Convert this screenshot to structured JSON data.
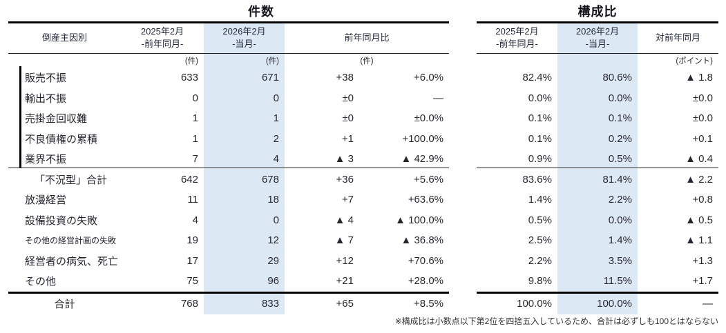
{
  "left_table": {
    "title": "件数",
    "headers": {
      "cause": "倒産主因別",
      "col2025": "2025年2月\n-前年同月-",
      "col2026": "2026年2月\n-当月-",
      "yoy": "前年同月比"
    },
    "units": {
      "col2025": "(件)",
      "col2026": "(件)",
      "yoy": "(件)"
    }
  },
  "right_table": {
    "title": "構成比",
    "headers": {
      "col2025": "2025年2月\n-前年同月-",
      "col2026": "2026年2月\n-当月-",
      "yoy": "対前年同月"
    },
    "units": {
      "yoy": "(ポイント)"
    }
  },
  "rows": [
    {
      "label": "販売不振",
      "cases_prev": "633",
      "cases_curr": "671",
      "cases_diff": "+38",
      "cases_pct": "+6.0%",
      "share_prev": "82.4%",
      "share_curr": "80.6%",
      "share_diff": "▲ 1.8"
    },
    {
      "label": "輸出不振",
      "cases_prev": "0",
      "cases_curr": "0",
      "cases_diff": "±0",
      "cases_pct": "—",
      "share_prev": "0.0%",
      "share_curr": "0.0%",
      "share_diff": "±0.0"
    },
    {
      "label": "売掛金回収難",
      "cases_prev": "1",
      "cases_curr": "1",
      "cases_diff": "±0",
      "cases_pct": "±0.0%",
      "share_prev": "0.1%",
      "share_curr": "0.1%",
      "share_diff": "±0.0"
    },
    {
      "label": "不良債権の累積",
      "cases_prev": "1",
      "cases_curr": "2",
      "cases_diff": "+1",
      "cases_pct": "+100.0%",
      "share_prev": "0.1%",
      "share_curr": "0.2%",
      "share_diff": "+0.1"
    },
    {
      "label": "業界不振",
      "cases_prev": "7",
      "cases_curr": "4",
      "cases_diff": "▲ 3",
      "cases_pct": "▲ 42.9%",
      "share_prev": "0.9%",
      "share_curr": "0.5%",
      "share_diff": "▲ 0.4"
    },
    {
      "label": "「不況型」合計",
      "cases_prev": "642",
      "cases_curr": "678",
      "cases_diff": "+36",
      "cases_pct": "+5.6%",
      "share_prev": "83.6%",
      "share_curr": "81.4%",
      "share_diff": "▲ 2.2"
    },
    {
      "label": "放漫経営",
      "cases_prev": "11",
      "cases_curr": "18",
      "cases_diff": "+7",
      "cases_pct": "+63.6%",
      "share_prev": "1.4%",
      "share_curr": "2.2%",
      "share_diff": "+0.8"
    },
    {
      "label": "設備投資の失敗",
      "cases_prev": "4",
      "cases_curr": "0",
      "cases_diff": "▲ 4",
      "cases_pct": "▲ 100.0%",
      "share_prev": "0.5%",
      "share_curr": "0.0%",
      "share_diff": "▲ 0.5"
    },
    {
      "label": "その他の経営計画の失敗",
      "cases_prev": "19",
      "cases_curr": "12",
      "cases_diff": "▲ 7",
      "cases_pct": "▲ 36.8%",
      "share_prev": "2.5%",
      "share_curr": "1.4%",
      "share_diff": "▲ 1.1"
    },
    {
      "label": "経営者の病気、死亡",
      "cases_prev": "17",
      "cases_curr": "29",
      "cases_diff": "+12",
      "cases_pct": "+70.6%",
      "share_prev": "2.2%",
      "share_curr": "3.5%",
      "share_diff": "+1.3"
    },
    {
      "label": "その他",
      "cases_prev": "75",
      "cases_curr": "96",
      "cases_diff": "+21",
      "cases_pct": "+28.0%",
      "share_prev": "9.8%",
      "share_curr": "11.5%",
      "share_diff": "+1.7"
    }
  ],
  "total": {
    "label": "合計",
    "cases_prev": "768",
    "cases_curr": "833",
    "cases_diff": "+65",
    "cases_pct": "+8.5%",
    "share_prev": "100.0%",
    "share_curr": "100.0%",
    "share_diff": "—"
  },
  "footnote": "※構成比は小数点以下第2位を四捨五入しているため、合計は必ずしも100とはならない",
  "colors": {
    "highlight_column": "#dce8f4",
    "rule": "#000000",
    "text": "#26262e"
  }
}
